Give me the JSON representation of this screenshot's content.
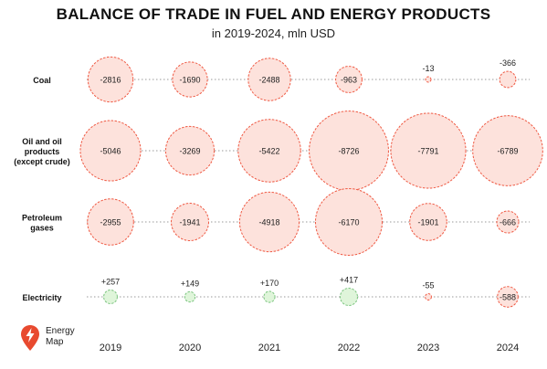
{
  "title": "BALANCE OF TRADE IN FUEL AND ENERGY PRODUCTS",
  "subtitle": "in 2019-2024, mln USD",
  "brand": {
    "line1": "Energy",
    "line2": "Map",
    "icon": "lightning-pin-icon"
  },
  "colors": {
    "negative_fill": "#fde2dc",
    "negative_stroke": "#ef5a44",
    "positive_fill": "#dff5da",
    "positive_stroke": "#7bc47f",
    "line": "#999999",
    "brand": "#e84a2f"
  },
  "chart_data": {
    "type": "bubble",
    "title": "BALANCE OF TRADE IN FUEL AND ENERGY PRODUCTS",
    "subtitle": "in 2019-2024, mln USD",
    "x": [
      "2019",
      "2020",
      "2021",
      "2022",
      "2023",
      "2024"
    ],
    "series": [
      {
        "name": "Coal",
        "label_lines": [
          "Coal"
        ],
        "values": [
          -2816,
          -1690,
          -2488,
          -963,
          -13,
          -366
        ],
        "outside_labels": [
          false,
          false,
          false,
          false,
          true,
          true
        ]
      },
      {
        "name": "Oil and oil products (except crude)",
        "label_lines": [
          "Oil and oil",
          "products",
          "(except crude)"
        ],
        "values": [
          -5046,
          -3269,
          -5422,
          -8726,
          -7791,
          -6789
        ],
        "outside_labels": [
          false,
          false,
          false,
          false,
          false,
          false
        ]
      },
      {
        "name": "Petroleum gases",
        "label_lines": [
          "Petroleum",
          "gases"
        ],
        "values": [
          -2955,
          -1941,
          -4918,
          -6170,
          -1901,
          -666
        ],
        "outside_labels": [
          false,
          false,
          false,
          false,
          false,
          false
        ]
      },
      {
        "name": "Electricity",
        "label_lines": [
          "Electricity"
        ],
        "values": [
          257,
          149,
          170,
          417,
          -55,
          -588
        ],
        "value_labels": [
          "+257",
          "+149",
          "+170",
          "+417",
          "-55",
          "-588"
        ],
        "outside_labels": [
          true,
          true,
          true,
          true,
          true,
          false
        ]
      }
    ]
  }
}
